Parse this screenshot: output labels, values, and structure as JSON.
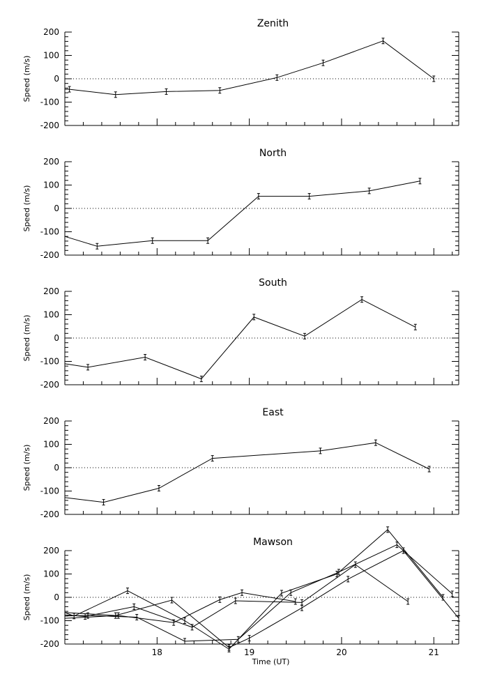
{
  "chart_data": [
    {
      "type": "line",
      "title": "Zenith",
      "ylabel": "Speed (m/s)",
      "ylim": [
        -200,
        200
      ],
      "yticks": [
        "200",
        "100",
        "0",
        "-100",
        "-200"
      ],
      "xlim": [
        17.0,
        21.27
      ],
      "zero_line": true,
      "series": [
        {
          "points": [
            [
              17.0,
              -45
            ],
            [
              17.05,
              -45
            ],
            [
              17.55,
              -68
            ],
            [
              18.1,
              -55
            ],
            [
              18.68,
              -50
            ],
            [
              19.3,
              5
            ],
            [
              19.8,
              68
            ],
            [
              20.45,
              162
            ],
            [
              21.0,
              0
            ]
          ]
        }
      ]
    },
    {
      "type": "line",
      "title": "North",
      "ylabel": "Speed (m/s)",
      "ylim": [
        -200,
        200
      ],
      "yticks": [
        "200",
        "100",
        "0",
        "-100",
        "-200"
      ],
      "xlim": [
        17.0,
        21.27
      ],
      "zero_line": true,
      "series": [
        {
          "points": [
            [
              17.0,
              -120
            ],
            [
              17.35,
              -162
            ],
            [
              17.95,
              -138
            ],
            [
              18.55,
              -138
            ],
            [
              19.1,
              52
            ],
            [
              19.65,
              52
            ],
            [
              20.3,
              75
            ],
            [
              20.85,
              117
            ]
          ]
        }
      ]
    },
    {
      "type": "line",
      "title": "South",
      "ylabel": "Speed (m/s)",
      "ylim": [
        -200,
        200
      ],
      "yticks": [
        "200",
        "100",
        "0",
        "-100",
        "-200"
      ],
      "xlim": [
        17.0,
        21.27
      ],
      "zero_line": true,
      "series": [
        {
          "points": [
            [
              17.0,
              -110
            ],
            [
              17.25,
              -125
            ],
            [
              17.87,
              -82
            ],
            [
              18.48,
              -175
            ],
            [
              19.05,
              90
            ],
            [
              19.6,
              8
            ],
            [
              20.22,
              165
            ],
            [
              20.8,
              47
            ]
          ]
        }
      ]
    },
    {
      "type": "line",
      "title": "East",
      "ylabel": "Speed (m/s)",
      "ylim": [
        -200,
        200
      ],
      "yticks": [
        "200",
        "100",
        "0",
        "-100",
        "-200"
      ],
      "xlim": [
        17.0,
        21.27
      ],
      "zero_line": true,
      "series": [
        {
          "points": [
            [
              17.0,
              -128
            ],
            [
              17.42,
              -148
            ],
            [
              18.02,
              -88
            ],
            [
              18.6,
              40
            ],
            [
              19.77,
              72
            ],
            [
              20.37,
              107
            ],
            [
              20.95,
              -6
            ]
          ]
        }
      ]
    },
    {
      "type": "line",
      "title": "Mawson",
      "ylabel": "Speed (m/s)",
      "xlabel": "Time (UT)",
      "ylim": [
        -200,
        200
      ],
      "yticks": [
        "200",
        "100",
        "0",
        "-100",
        "-200"
      ],
      "xlim": [
        17.0,
        21.27
      ],
      "xticks": [
        "18",
        "19",
        "20",
        "21"
      ],
      "zero_line": true,
      "series": [
        {
          "points": [
            [
              17.0,
              -65
            ],
            [
              17.1,
              -80
            ],
            [
              17.68,
              28
            ],
            [
              18.3,
              -100
            ],
            [
              18.78,
              -222
            ],
            [
              19.35,
              18
            ],
            [
              19.95,
              100
            ],
            [
              20.5,
              290
            ],
            [
              21.1,
              0
            ]
          ]
        },
        {
          "points": [
            [
              17.0,
              -75
            ],
            [
              17.22,
              -82
            ],
            [
              17.75,
              -40
            ],
            [
              18.38,
              -128
            ],
            [
              18.85,
              -15
            ],
            [
              19.57,
              -22
            ],
            [
              20.15,
              140
            ],
            [
              20.72,
              -18
            ]
          ]
        },
        {
          "points": [
            [
              17.0,
              -65
            ],
            [
              17.55,
              -78
            ],
            [
              18.16,
              -12
            ],
            [
              18.78,
              -215
            ],
            [
              19.0,
              -175
            ],
            [
              19.57,
              -45
            ],
            [
              20.07,
              78
            ],
            [
              20.67,
              200
            ],
            [
              21.27,
              -90
            ]
          ]
        },
        {
          "points": [
            [
              17.0,
              -80
            ],
            [
              17.25,
              -78
            ],
            [
              17.78,
              -85
            ],
            [
              18.3,
              -188
            ],
            [
              18.88,
              -180
            ],
            [
              19.45,
              20
            ],
            [
              19.97,
              108
            ],
            [
              20.6,
              225
            ],
            [
              21.2,
              15
            ]
          ]
        },
        {
          "points": [
            [
              17.0,
              -90
            ],
            [
              17.58,
              -78
            ],
            [
              18.18,
              -108
            ],
            [
              18.68,
              -10
            ],
            [
              18.92,
              20
            ],
            [
              19.5,
              -18
            ]
          ]
        }
      ]
    }
  ]
}
